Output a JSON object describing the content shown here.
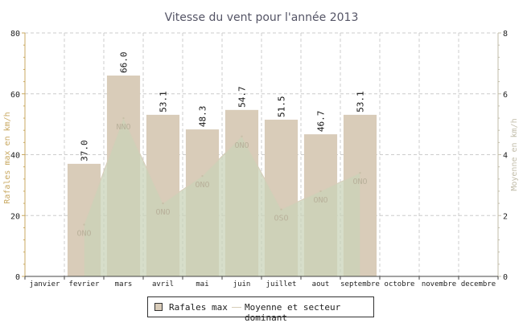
{
  "chart_data": {
    "type": "bar",
    "title": "Vitesse du vent pour l'année 2013",
    "categories": [
      "janvier",
      "fevrier",
      "mars",
      "avril",
      "mai",
      "juin",
      "juillet",
      "aout",
      "septembre",
      "octobre",
      "novembre",
      "decembre"
    ],
    "series": [
      {
        "name": "Rafales max",
        "type": "bar",
        "axis": "left",
        "values": [
          null,
          37.0,
          66.0,
          53.1,
          48.3,
          54.7,
          51.5,
          46.7,
          53.1,
          null,
          null,
          null
        ],
        "value_labels": [
          "",
          "37.0",
          "66.0",
          "53.1",
          "48.3",
          "54.7",
          "51.5",
          "46.7",
          "53.1",
          "",
          "",
          ""
        ],
        "color": "#d9ccb9"
      },
      {
        "name": "Moyenne et secteur dominant",
        "type": "area",
        "axis": "right",
        "values": [
          null,
          1.7,
          5.2,
          2.4,
          3.3,
          4.6,
          2.2,
          2.8,
          3.4,
          null,
          null,
          null
        ],
        "directions": [
          "",
          "ONO",
          "NNO",
          "ONO",
          "ONO",
          "ONO",
          "OSO",
          "ONO",
          "ONO",
          "",
          "",
          ""
        ],
        "color": "#c9d3b8"
      }
    ],
    "ylabel": "Rafales max en km/h",
    "y2label": "Moyenne en km/h",
    "ylim": [
      0,
      80
    ],
    "y2lim": [
      0,
      8
    ],
    "yticks": [
      "0",
      "20",
      "40",
      "60",
      "80"
    ],
    "y2ticks": [
      "0",
      "2",
      "4",
      "6",
      "8"
    ],
    "grid": true,
    "legend_position": "bottom"
  },
  "colors": {
    "bar_fill": "#d9ccb9",
    "area_fill": "#c9d3b8",
    "axis_left": "#c8a860",
    "axis_right": "#c2bdaa",
    "grid": "#cccccc"
  }
}
